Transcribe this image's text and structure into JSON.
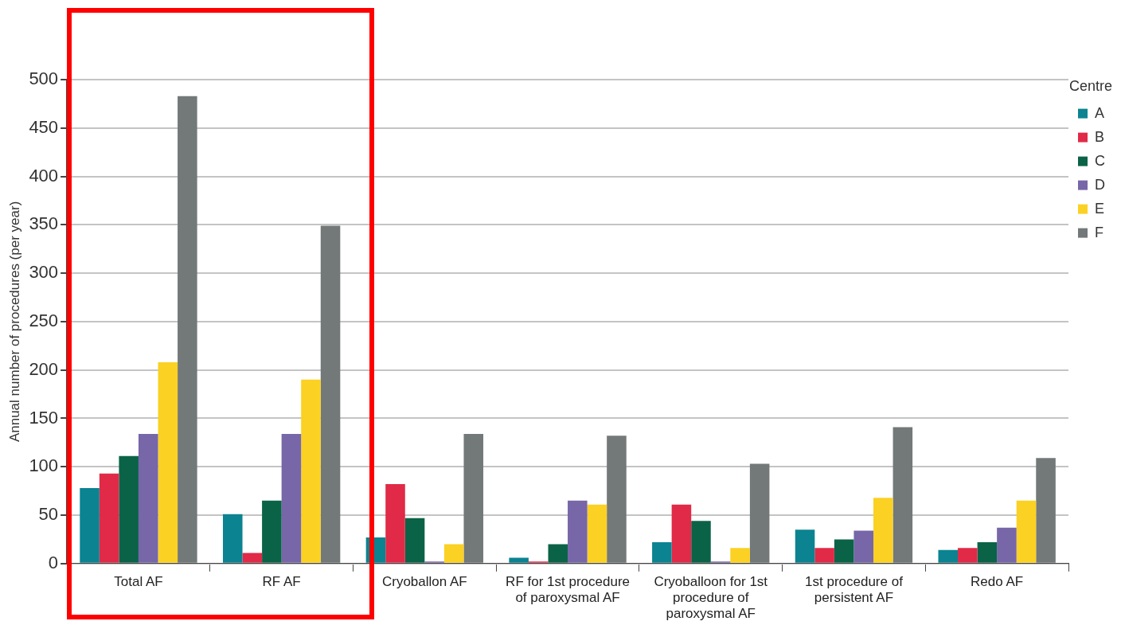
{
  "chart_data": {
    "type": "bar",
    "ylabel": "Annual number of procedures (per year)",
    "legend_title": "Centre",
    "legend": "right",
    "grid": "y",
    "categories": [
      "Total AF",
      "RF AF",
      "Cryoballon AF",
      "RF for 1st procedure of paroxysmal AF",
      "Cryoballoon for 1st procedure of paroxysmal AF",
      "1st procedure of persistent AF",
      "Redo AF"
    ],
    "ylim": [
      0,
      500
    ],
    "yticks": [
      0,
      50,
      100,
      150,
      200,
      250,
      300,
      350,
      400,
      450,
      500
    ],
    "series": [
      {
        "name": "A",
        "color": "#0b8391",
        "values": [
          78,
          51,
          27,
          6,
          22,
          35,
          14
        ]
      },
      {
        "name": "B",
        "color": "#e02a47",
        "values": [
          93,
          11,
          82,
          2,
          61,
          16,
          16
        ]
      },
      {
        "name": "C",
        "color": "#0b6347",
        "values": [
          111,
          65,
          47,
          20,
          44,
          25,
          22
        ]
      },
      {
        "name": "D",
        "color": "#7766a8",
        "values": [
          134,
          134,
          2,
          65,
          2,
          34,
          37
        ]
      },
      {
        "name": "E",
        "color": "#fbd123",
        "values": [
          208,
          190,
          20,
          61,
          16,
          68,
          65
        ]
      },
      {
        "name": "F",
        "color": "#737879",
        "values": [
          483,
          349,
          134,
          132,
          103,
          141,
          109
        ]
      }
    ]
  }
}
